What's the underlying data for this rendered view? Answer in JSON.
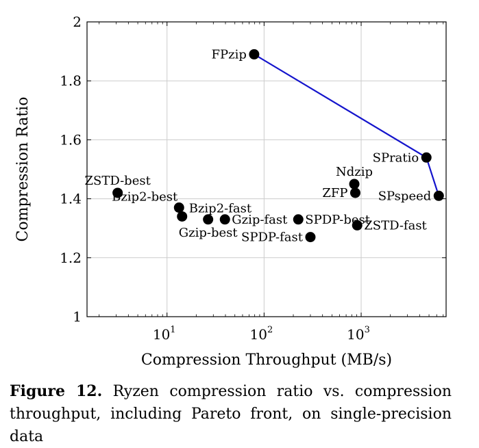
{
  "chart_data": {
    "type": "scatter",
    "xscale": "log",
    "xlabel": "Compression Throughput (MB/s)",
    "ylabel": "Compression Ratio",
    "xlim": [
      1.5,
      7500
    ],
    "ylim": [
      1,
      2
    ],
    "xticks": [
      {
        "value": 10,
        "label": "10",
        "exp": "1"
      },
      {
        "value": 100,
        "label": "10",
        "exp": "2"
      },
      {
        "value": 1000,
        "label": "10",
        "exp": "3"
      }
    ],
    "yticks": [
      {
        "value": 1,
        "label": "1"
      },
      {
        "value": 1.2,
        "label": "1.2"
      },
      {
        "value": 1.4,
        "label": "1.4"
      },
      {
        "value": 1.6,
        "label": "1.6"
      },
      {
        "value": 1.8,
        "label": "1.8"
      },
      {
        "value": 2,
        "label": "2"
      }
    ],
    "grid": true,
    "points": [
      {
        "name": "ZSTD-best",
        "x": 3.1,
        "y": 1.42,
        "label_pos": "above"
      },
      {
        "name": "Bzip2-best",
        "x": 13.3,
        "y": 1.37,
        "label_pos": "above-left"
      },
      {
        "name": "Bzip2-fast",
        "x": 14.3,
        "y": 1.34,
        "label_pos": "above-right"
      },
      {
        "name": "Gzip-best",
        "x": 26.5,
        "y": 1.33,
        "label_pos": "below"
      },
      {
        "name": "Gzip-fast",
        "x": 39.5,
        "y": 1.33,
        "label_pos": "right"
      },
      {
        "name": "FPzip",
        "x": 79,
        "y": 1.89,
        "label_pos": "left"
      },
      {
        "name": "SPDP-best",
        "x": 225,
        "y": 1.33,
        "label_pos": "right"
      },
      {
        "name": "SPDP-fast",
        "x": 300,
        "y": 1.27,
        "label_pos": "left"
      },
      {
        "name": "Ndzip",
        "x": 850,
        "y": 1.45,
        "label_pos": "above"
      },
      {
        "name": "ZFP",
        "x": 870,
        "y": 1.42,
        "label_pos": "left"
      },
      {
        "name": "ZSTD-fast",
        "x": 910,
        "y": 1.31,
        "label_pos": "right"
      },
      {
        "name": "SPratio",
        "x": 4700,
        "y": 1.54,
        "label_pos": "left"
      },
      {
        "name": "SPspeed",
        "x": 6300,
        "y": 1.41,
        "label_pos": "left"
      }
    ],
    "pareto_front": {
      "color": "#1414cc",
      "points": [
        {
          "x": 79,
          "y": 1.89
        },
        {
          "x": 4700,
          "y": 1.54
        },
        {
          "x": 6300,
          "y": 1.41
        }
      ]
    }
  },
  "caption": {
    "label": "Figure 12.",
    "text": "Ryzen compression ratio vs. compression throughput, including Pareto front, on single-precision data"
  }
}
